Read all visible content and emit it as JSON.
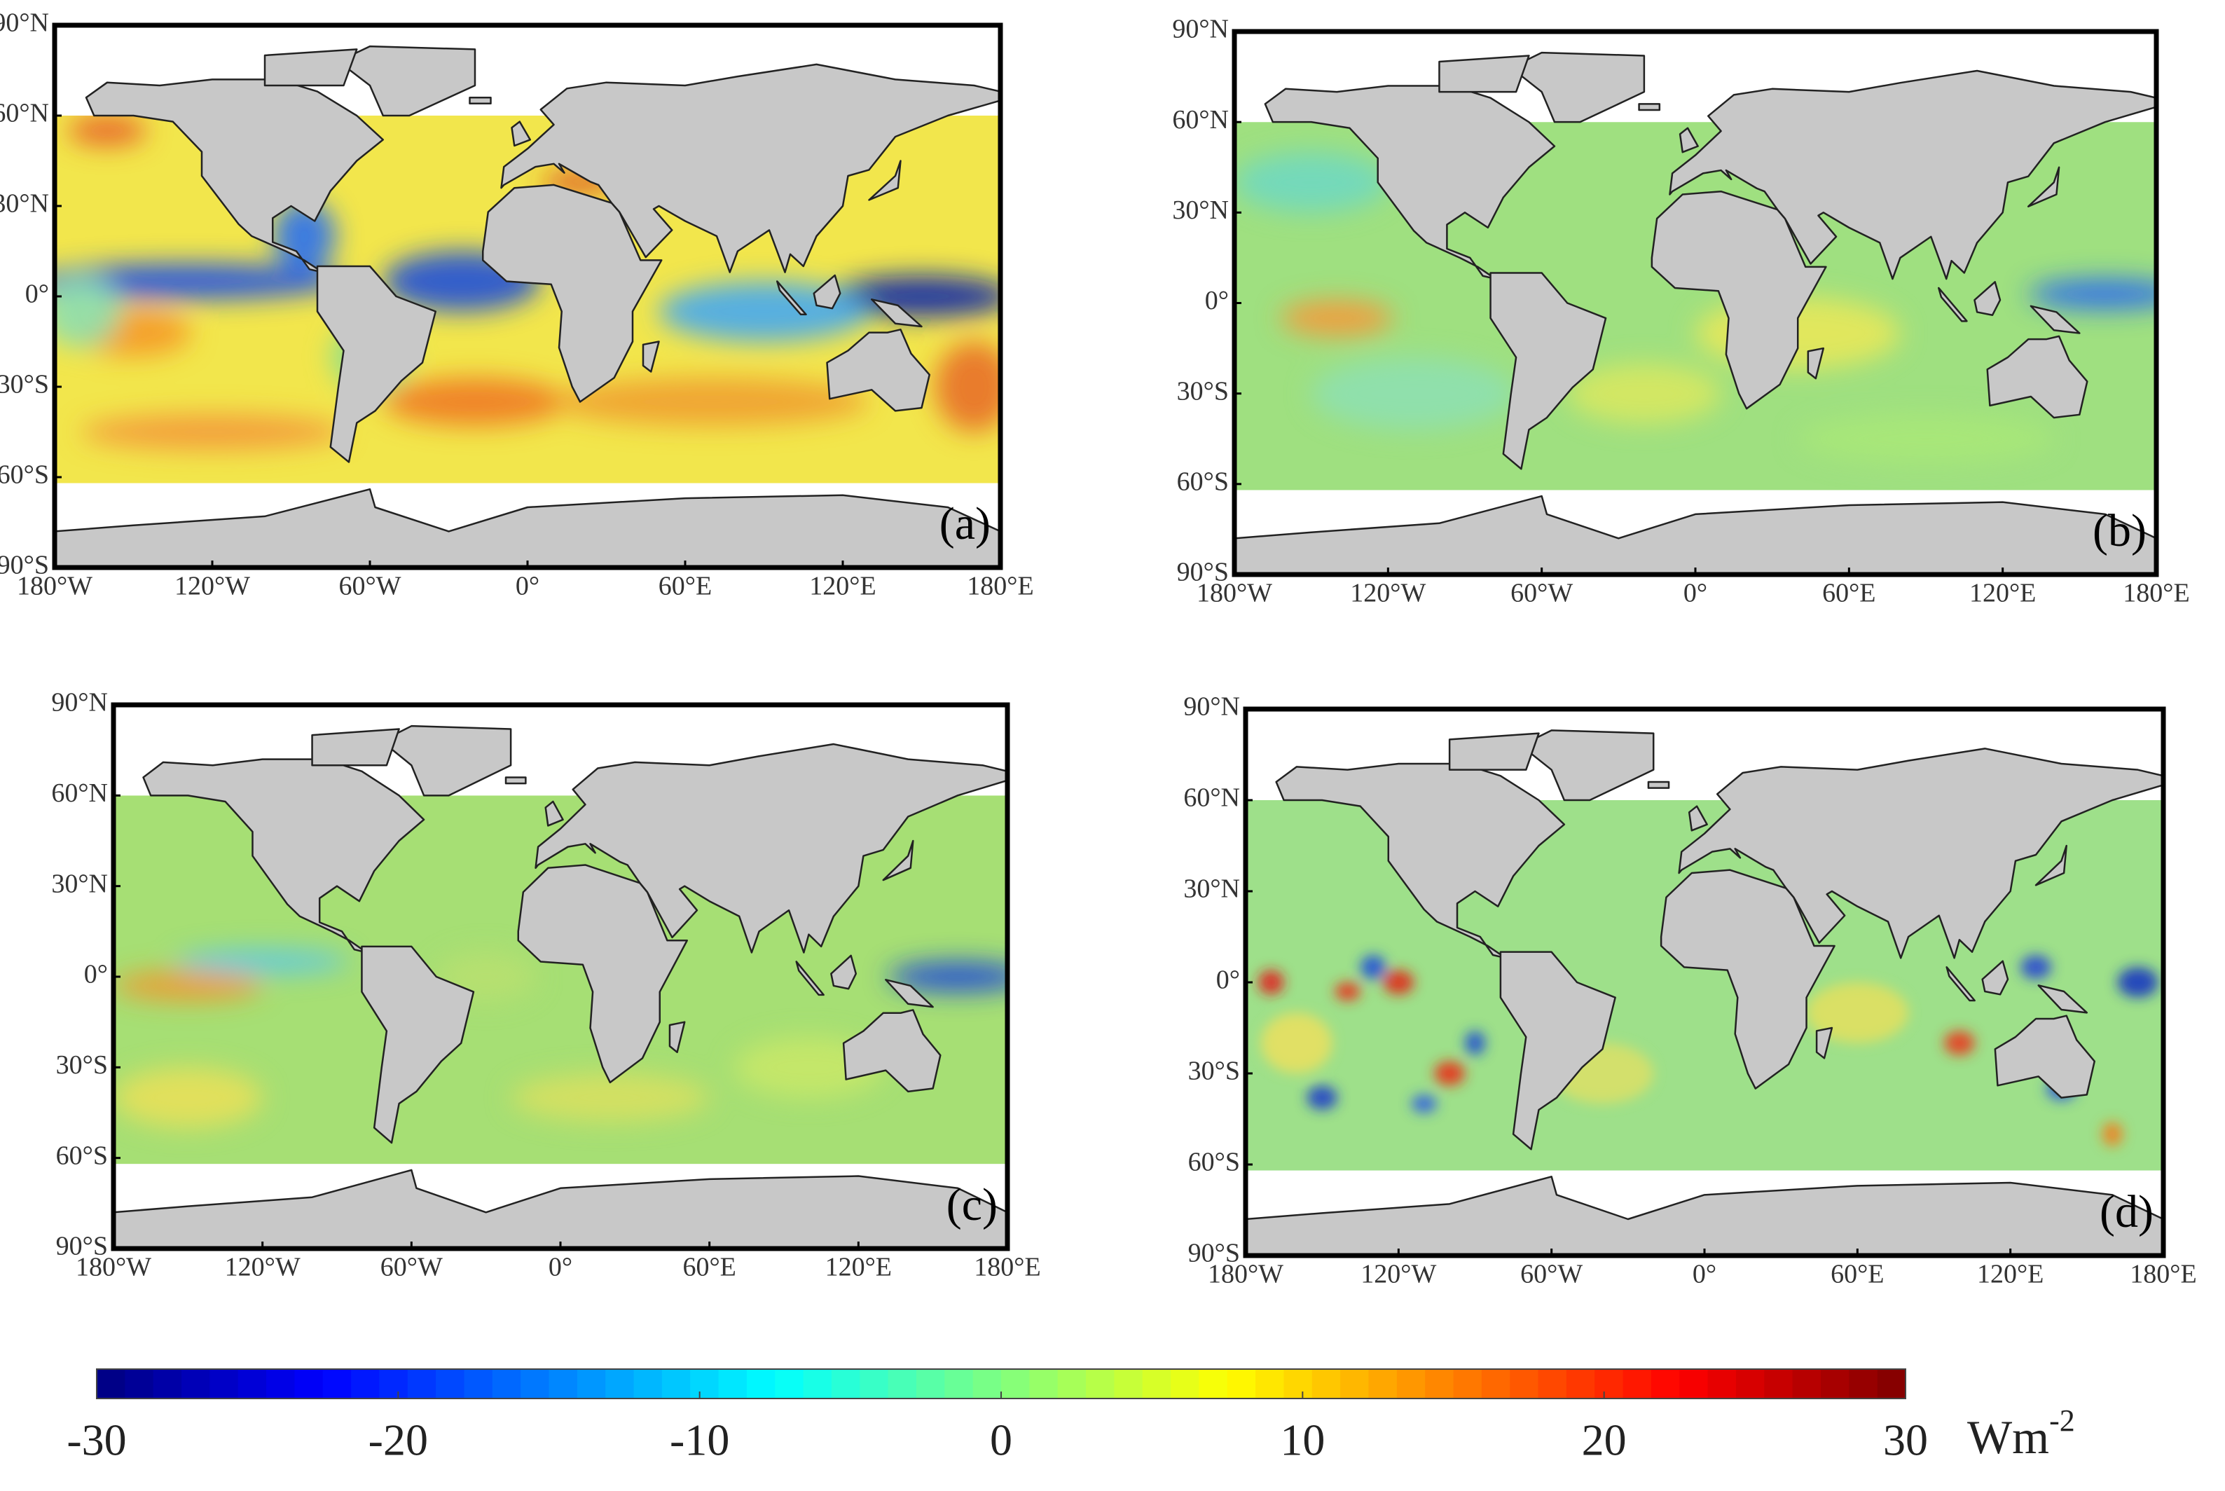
{
  "lon_ticks": [
    {
      "value": -180,
      "label": "180°W"
    },
    {
      "value": -120,
      "label": "120°W"
    },
    {
      "value": -60,
      "label": "60°W"
    },
    {
      "value": 0,
      "label": "0°"
    },
    {
      "value": 60,
      "label": "60°E"
    },
    {
      "value": 120,
      "label": "120°E"
    },
    {
      "value": 180,
      "label": "180°E"
    }
  ],
  "lat_ticks": [
    {
      "value": 90,
      "label": "90°N"
    },
    {
      "value": 60,
      "label": "60°N"
    },
    {
      "value": 30,
      "label": "30°N"
    },
    {
      "value": 0,
      "label": "0°"
    },
    {
      "value": -30,
      "label": "30°S"
    },
    {
      "value": -60,
      "label": "60°S"
    },
    {
      "value": -90,
      "label": "90°S"
    }
  ],
  "panels": [
    {
      "label": "(a)"
    },
    {
      "label": "(b)"
    },
    {
      "label": "(c)"
    },
    {
      "label": "(d)"
    }
  ],
  "colorbar": {
    "lim": [
      -30,
      30
    ],
    "ticks": [
      -30,
      -20,
      -10,
      0,
      10,
      20,
      30
    ],
    "unit": {
      "base": "Wm",
      "exponent": "-2"
    }
  }
}
